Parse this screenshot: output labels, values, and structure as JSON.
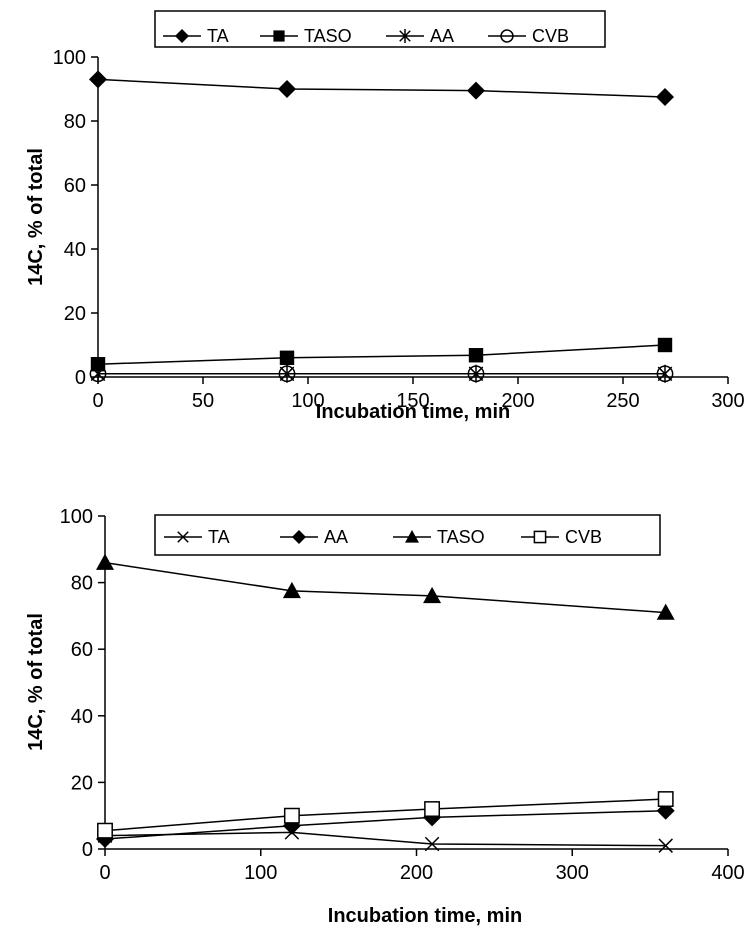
{
  "chart_data": [
    {
      "type": "line",
      "xlabel": "Incubation time, min",
      "ylabel": "14C, % of total",
      "xlim": [
        0,
        300
      ],
      "ylim": [
        0,
        100
      ],
      "xticks": [
        "0",
        "50",
        "100",
        "150",
        "200",
        "250",
        "300"
      ],
      "yticks": [
        "0",
        "20",
        "40",
        "60",
        "80",
        "100"
      ],
      "legend_position": "top",
      "series": [
        {
          "name": "TA",
          "marker": "diamond",
          "x": [
            0,
            90,
            180,
            270
          ],
          "y": [
            93,
            90,
            89.5,
            87.5
          ]
        },
        {
          "name": "TASO",
          "marker": "square",
          "x": [
            0,
            90,
            180,
            270
          ],
          "y": [
            4,
            6,
            6.8,
            10
          ]
        },
        {
          "name": "AA",
          "marker": "asterisk",
          "x": [
            0,
            90,
            180,
            270
          ],
          "y": [
            1,
            1,
            1,
            1
          ]
        },
        {
          "name": "CVB",
          "marker": "circle",
          "x": [
            0,
            90,
            180,
            270
          ],
          "y": [
            1,
            1,
            1,
            1
          ]
        }
      ]
    },
    {
      "type": "line",
      "xlabel": "Incubation time, min",
      "ylabel": "14C, % of total",
      "xlim": [
        0,
        400
      ],
      "ylim": [
        0,
        100
      ],
      "xticks": [
        "0",
        "100",
        "200",
        "300",
        "400"
      ],
      "yticks": [
        "0",
        "20",
        "40",
        "60",
        "80",
        "100"
      ],
      "legend_position": "top",
      "series": [
        {
          "name": "TA",
          "marker": "x",
          "x": [
            0,
            120,
            210,
            360
          ],
          "y": [
            4,
            5,
            1.5,
            1
          ]
        },
        {
          "name": "AA",
          "marker": "diamond",
          "x": [
            0,
            120,
            210,
            360
          ],
          "y": [
            3,
            7,
            9.5,
            11.5
          ]
        },
        {
          "name": "TASO",
          "marker": "triangle",
          "x": [
            0,
            120,
            210,
            360
          ],
          "y": [
            86,
            77.5,
            76,
            71
          ]
        },
        {
          "name": "CVB",
          "marker": "open-square",
          "x": [
            0,
            120,
            210,
            360
          ],
          "y": [
            5.5,
            10,
            12,
            15
          ]
        }
      ]
    }
  ]
}
